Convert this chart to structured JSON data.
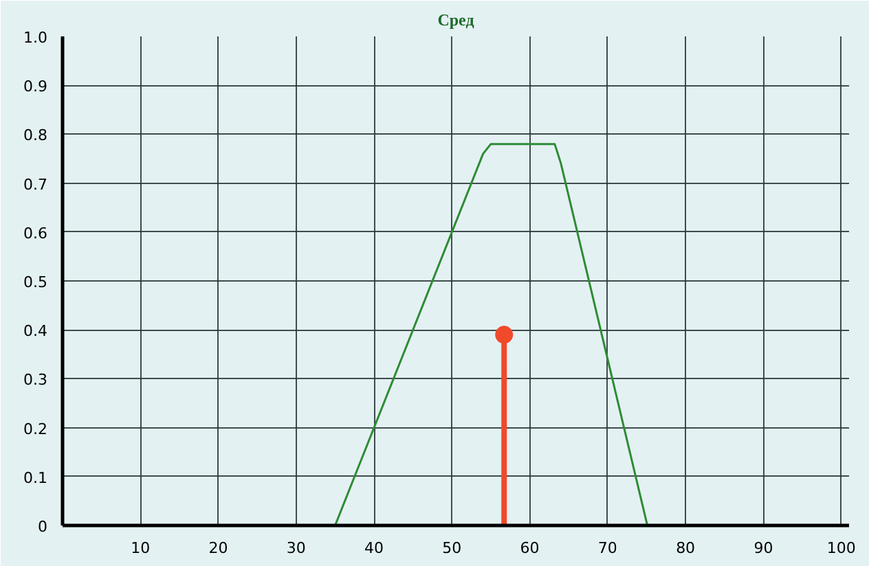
{
  "chart_data": {
    "type": "line",
    "title": "Сред",
    "series": [
      {
        "color": "#2e8b34",
        "marker": "none",
        "x": [
          35,
          54,
          55,
          63.2,
          64,
          75.1
        ],
        "values": [
          0,
          0.76,
          0.78,
          0.78,
          0.74,
          0
        ]
      },
      {
        "type": "lollipop",
        "marker": "circle",
        "color": "#f04a2a",
        "x": [
          56.7
        ],
        "values": [
          0.39
        ]
      }
    ],
    "xlim": [
      0,
      101
    ],
    "ylim": [
      0,
      1.0
    ],
    "xticks": [
      10,
      20,
      30,
      40,
      50,
      60,
      70,
      80,
      90,
      100
    ],
    "yticks": [
      0,
      0.1,
      0.2,
      0.3,
      0.4,
      0.5,
      0.6,
      0.7,
      0.8,
      0.9,
      {
        "value": 1.0,
        "label": "1.0"
      }
    ],
    "grid": true,
    "line_style": "solid"
  }
}
